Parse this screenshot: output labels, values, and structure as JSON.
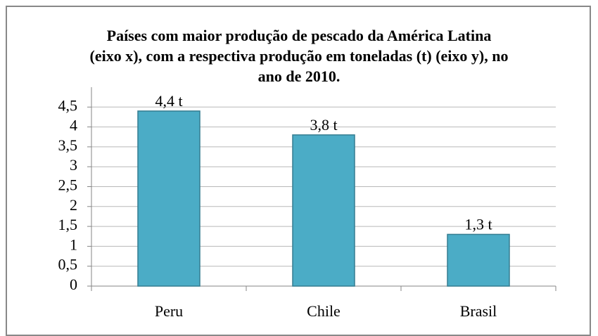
{
  "chart_data": {
    "type": "bar",
    "title": "Países com maior produção de pescado da América Latina\n(eixo x), com a respectiva produção em toneladas (t) (eixo y), no\nano de 2010.",
    "categories": [
      "Peru",
      "Chile",
      "Brasil"
    ],
    "values": [
      4.4,
      3.8,
      1.3
    ],
    "value_labels": [
      "4,4 t",
      "3,8 t",
      "1,3 t"
    ],
    "color": "#4bacc6",
    "ylim": [
      0,
      5
    ],
    "yticks": [
      0,
      {
        "value": 0.5,
        "label": "0,5"
      },
      1,
      {
        "value": 1.5,
        "label": "1,5"
      },
      2,
      {
        "value": 2.5,
        "label": "2,5"
      },
      3,
      {
        "value": 3.5,
        "label": "3,5"
      },
      4,
      {
        "value": 4.5,
        "label": "4,5"
      }
    ],
    "grid": true
  }
}
